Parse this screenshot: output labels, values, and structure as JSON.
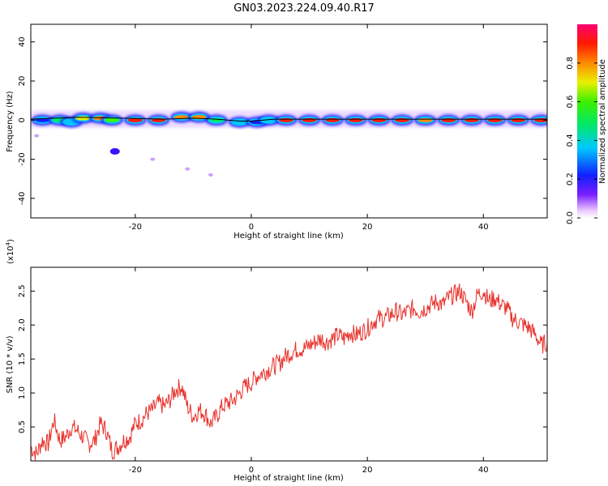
{
  "title": "GN03.2023.224.09.40.R17",
  "colors": {
    "snr_line": "#e8302a",
    "spectrum_line": "#000000",
    "background": "#ffffff"
  },
  "chart_data": [
    {
      "type": "heatmap",
      "title": "GN03.2023.224.09.40.R17",
      "xlabel": "Height of straight line (km)",
      "ylabel": "Frequency (Hz)",
      "xlim": [
        -38,
        51
      ],
      "ylim": [
        -50,
        49
      ],
      "xticks": [
        -20,
        0,
        20,
        40
      ],
      "yticks": [
        -40,
        -20,
        0,
        20,
        40
      ],
      "colorbar": {
        "label": "Normalized spectral amplitude",
        "range": [
          0,
          1
        ],
        "ticks": [
          "0.0",
          "0.2",
          "0.4",
          "0.6",
          "0.8"
        ],
        "colormap": "rainbow (white-violet-blue-cyan-green-yellow-red-magenta)"
      },
      "ridge_line": {
        "x": [
          -38,
          -30,
          -22,
          -15,
          -10,
          -6,
          -2,
          0,
          4,
          10,
          20,
          30,
          40,
          51
        ],
        "y": [
          0.5,
          1.5,
          1.0,
          0.5,
          1.0,
          0.5,
          -0.5,
          -0.5,
          0.5,
          0.5,
          0.5,
          0.5,
          0.5,
          0.5
        ]
      },
      "blobs": [
        {
          "x": -36,
          "f": 0,
          "amp": 0.35
        },
        {
          "x": -33,
          "f": 0,
          "amp": 0.55
        },
        {
          "x": -31,
          "f": -1,
          "amp": 0.45
        },
        {
          "x": -29,
          "f": 1,
          "amp": 0.75
        },
        {
          "x": -26,
          "f": 1,
          "amp": 0.8
        },
        {
          "x": -24,
          "f": 0,
          "amp": 0.6
        },
        {
          "x": -20,
          "f": 0,
          "amp": 0.9
        },
        {
          "x": -16,
          "f": 0,
          "amp": 0.9
        },
        {
          "x": -12,
          "f": 1.5,
          "amp": 0.85
        },
        {
          "x": -9,
          "f": 1.5,
          "amp": 0.8
        },
        {
          "x": -6,
          "f": 0,
          "amp": 0.55
        },
        {
          "x": -2,
          "f": -1,
          "amp": 0.45
        },
        {
          "x": 1,
          "f": -1,
          "amp": 0.35
        },
        {
          "x": 3,
          "f": 0,
          "amp": 0.4
        },
        {
          "x": 6,
          "f": 0,
          "amp": 0.9
        },
        {
          "x": 10,
          "f": 0,
          "amp": 0.95
        },
        {
          "x": 14,
          "f": 0,
          "amp": 0.9
        },
        {
          "x": 18,
          "f": 0,
          "amp": 0.95
        },
        {
          "x": 22,
          "f": 0,
          "amp": 0.9
        },
        {
          "x": 26,
          "f": 0,
          "amp": 0.95
        },
        {
          "x": 30,
          "f": 0,
          "amp": 0.85
        },
        {
          "x": 34,
          "f": 0,
          "amp": 0.95
        },
        {
          "x": 38,
          "f": 0,
          "amp": 0.95
        },
        {
          "x": 42,
          "f": 0,
          "amp": 0.95
        },
        {
          "x": 46,
          "f": 0,
          "amp": 0.9
        },
        {
          "x": 50,
          "f": 0,
          "amp": 0.9
        }
      ],
      "outliers": [
        {
          "x": -23.5,
          "f": -16,
          "amp": 0.12
        },
        {
          "x": -37,
          "f": -8,
          "amp": 0.05
        },
        {
          "x": -17,
          "f": -20,
          "amp": 0.04
        },
        {
          "x": -11,
          "f": -25,
          "amp": 0.04
        },
        {
          "x": -7,
          "f": -28,
          "amp": 0.03
        }
      ]
    },
    {
      "type": "line",
      "xlabel": "Height of straight line (km)",
      "ylabel": "SNR (10 * v/v)",
      "y_multiplier": "(x10",
      "y_multiplier_exp": "4",
      "y_multiplier_close": ")",
      "xlim": [
        -38,
        51
      ],
      "ylim": [
        0,
        2.85
      ],
      "xticks": [
        -20,
        0,
        20,
        40
      ],
      "yticks": [
        "0.5",
        "1.0",
        "1.5",
        "2.0",
        "2.5"
      ],
      "series": [
        {
          "x": [
            -38,
            -37,
            -36,
            -35,
            -34,
            -33,
            -32,
            -31,
            -30,
            -29,
            -28,
            -27,
            -26,
            -25,
            -24,
            -23,
            -22,
            -21,
            -20,
            -19,
            -18,
            -17,
            -16,
            -15,
            -14,
            -13,
            -12,
            -11,
            -10,
            -9,
            -8,
            -7,
            -6,
            -5,
            -4,
            -3,
            -2,
            -1,
            0,
            1,
            2,
            3,
            4,
            5,
            6,
            7,
            8,
            9,
            10,
            11,
            12,
            13,
            14,
            15,
            16,
            17,
            18,
            19,
            20,
            21,
            22,
            23,
            24,
            25,
            26,
            27,
            28,
            29,
            30,
            31,
            32,
            33,
            34,
            35,
            36,
            37,
            38,
            39,
            40,
            41,
            42,
            43,
            44,
            45,
            46,
            47,
            48,
            49,
            50,
            51
          ],
          "values": [
            0.2,
            0.1,
            0.3,
            0.25,
            0.6,
            0.3,
            0.35,
            0.5,
            0.45,
            0.35,
            0.25,
            0.3,
            0.55,
            0.45,
            0.15,
            0.2,
            0.3,
            0.35,
            0.55,
            0.6,
            0.7,
            0.75,
            0.85,
            0.8,
            0.9,
            1.05,
            1.1,
            0.8,
            0.65,
            0.75,
            0.7,
            0.55,
            0.65,
            0.8,
            0.85,
            0.9,
            1.0,
            1.1,
            1.15,
            1.25,
            1.3,
            1.35,
            1.4,
            1.45,
            1.55,
            1.6,
            1.65,
            1.65,
            1.7,
            1.75,
            1.8,
            1.75,
            1.8,
            1.85,
            1.8,
            1.9,
            1.85,
            1.9,
            1.95,
            2.05,
            2.1,
            2.1,
            2.15,
            2.2,
            2.15,
            2.2,
            2.25,
            2.2,
            2.25,
            2.3,
            2.35,
            2.3,
            2.4,
            2.45,
            2.5,
            2.35,
            2.2,
            2.45,
            2.5,
            2.35,
            2.4,
            2.3,
            2.25,
            2.1,
            2.05,
            2.0,
            1.95,
            1.85,
            1.7,
            1.75
          ]
        }
      ]
    }
  ]
}
